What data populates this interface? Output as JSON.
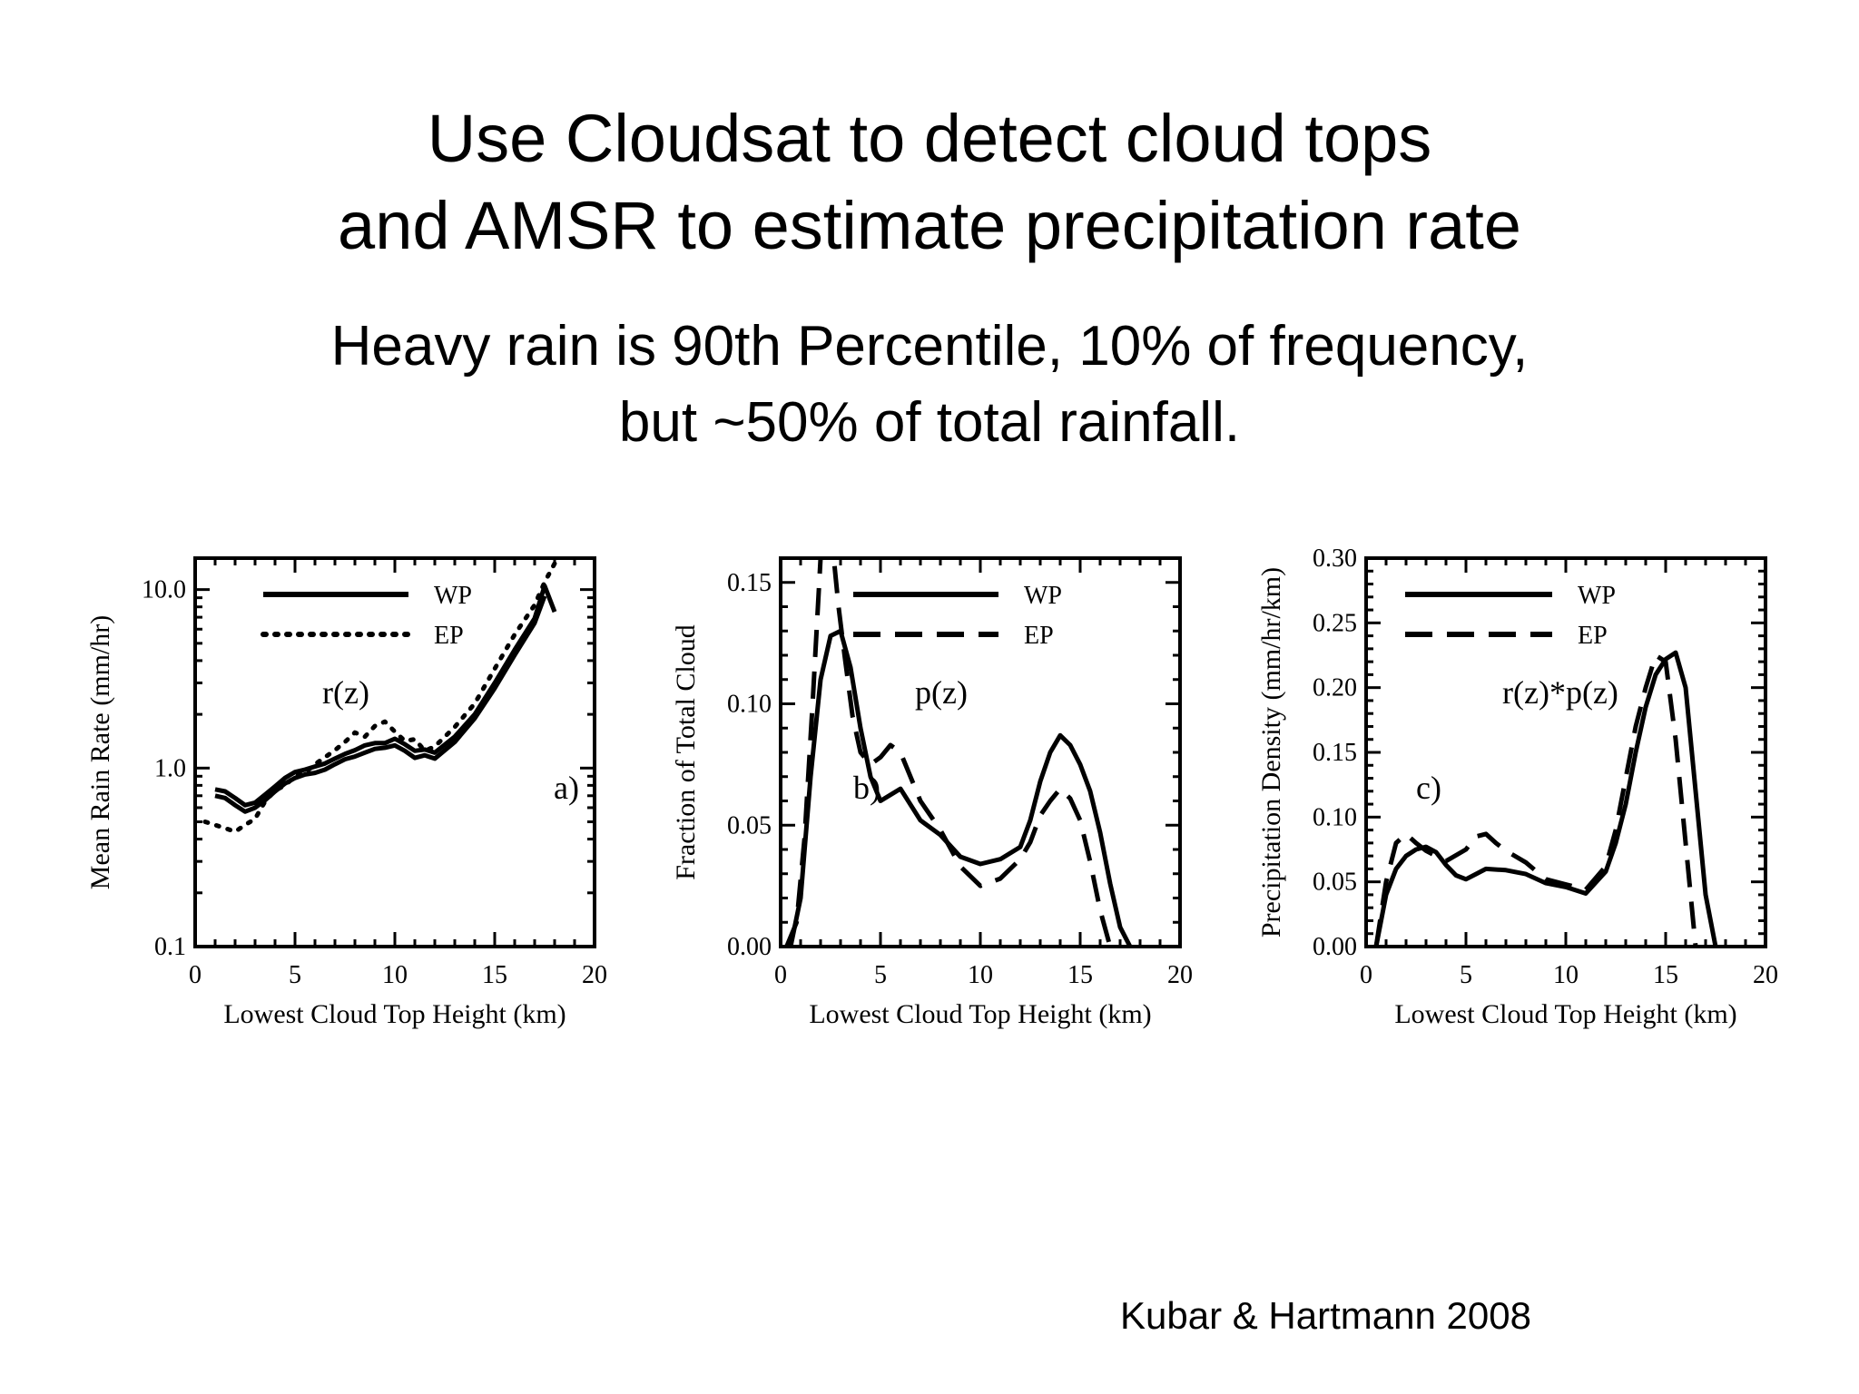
{
  "slide": {
    "title_line1": "Use Cloudsat to detect cloud tops",
    "title_line2": "and AMSR to estimate precipitation rate",
    "subtitle_line1": "Heavy rain is 90th Percentile, 10% of frequency,",
    "subtitle_line2": "but ~50% of total rainfall.",
    "citation": "Kubar & Hartmann 2008"
  },
  "chart_data": [
    {
      "type": "line",
      "panel": "a)",
      "annotation": "r(z)",
      "xlabel": "Lowest Cloud Top Height (km)",
      "ylabel": "Mean Rain Rate (mm/hr)",
      "xlim": [
        0,
        20
      ],
      "ylim": [
        0.1,
        15
      ],
      "yscale": "log",
      "xticks": [
        0,
        5,
        10,
        15,
        20
      ],
      "yticks": [
        0.1,
        1.0,
        10.0
      ],
      "yticklabels": [
        "0.1",
        "1.0",
        "10.0"
      ],
      "legend_placement": "top-right",
      "series": [
        {
          "name": "WP",
          "style": "solid",
          "x": [
            1,
            1.5,
            2,
            2.5,
            3,
            3.5,
            4,
            4.5,
            5,
            5.5,
            6,
            6.5,
            7,
            7.5,
            8,
            8.5,
            9,
            9.5,
            10,
            10.5,
            11,
            11.5,
            12,
            13,
            14,
            15,
            16,
            17,
            17.5
          ],
          "y": [
            0.7,
            0.68,
            0.62,
            0.57,
            0.6,
            0.66,
            0.74,
            0.82,
            0.88,
            0.92,
            0.94,
            0.98,
            1.05,
            1.12,
            1.16,
            1.22,
            1.28,
            1.3,
            1.34,
            1.25,
            1.14,
            1.18,
            1.13,
            1.4,
            1.9,
            2.8,
            4.3,
            6.5,
            9.2
          ]
        },
        {
          "name": "",
          "style": "solid",
          "x": [
            1,
            1.5,
            2,
            2.5,
            3,
            3.5,
            4,
            4.5,
            5,
            5.5,
            6,
            6.5,
            7,
            7.5,
            8,
            8.5,
            9,
            9.5,
            10,
            10.5,
            11,
            11.5,
            12,
            13,
            14,
            15,
            16,
            17,
            17.5,
            18
          ],
          "y": [
            0.76,
            0.74,
            0.68,
            0.62,
            0.64,
            0.71,
            0.79,
            0.88,
            0.95,
            0.98,
            1.02,
            1.06,
            1.13,
            1.2,
            1.26,
            1.34,
            1.38,
            1.38,
            1.46,
            1.36,
            1.25,
            1.27,
            1.22,
            1.5,
            2.0,
            3.0,
            4.6,
            6.9,
            10.5,
            7.5
          ]
        },
        {
          "name": "EP",
          "style": "dotted",
          "x": [
            0.5,
            1,
            1.5,
            2,
            2.5,
            3,
            3.5,
            4,
            4.5,
            5,
            5.5,
            6,
            6.5,
            7,
            7.5,
            8,
            8.5,
            9,
            9.5,
            10,
            10.5,
            11,
            11.5,
            12,
            13,
            14,
            15,
            16,
            17,
            17.5,
            18
          ],
          "y": [
            0.5,
            0.48,
            0.46,
            0.44,
            0.48,
            0.52,
            0.65,
            0.75,
            0.8,
            0.9,
            0.94,
            1.05,
            1.15,
            1.26,
            1.4,
            1.58,
            1.5,
            1.72,
            1.82,
            1.6,
            1.42,
            1.45,
            1.25,
            1.32,
            1.7,
            2.3,
            3.6,
            5.6,
            8.2,
            11,
            14
          ]
        }
      ]
    },
    {
      "type": "line",
      "panel": "b)",
      "annotation": "p(z)",
      "xlabel": "Lowest Cloud Top Height (km)",
      "ylabel": "Fraction of Total Cloud",
      "xlim": [
        0,
        20
      ],
      "ylim": [
        0,
        0.16
      ],
      "xticks": [
        0,
        5,
        10,
        15,
        20
      ],
      "yticks": [
        0.0,
        0.05,
        0.1,
        0.15
      ],
      "yticklabels": [
        "0.00",
        "0.05",
        "0.10",
        "0.15"
      ],
      "legend_placement": "top-right",
      "series": [
        {
          "name": "WP",
          "style": "solid",
          "x": [
            0.5,
            1,
            1.5,
            2,
            2.5,
            3,
            3.5,
            4,
            4.5,
            5,
            6,
            7,
            8,
            9,
            10,
            11,
            12,
            12.5,
            13,
            13.5,
            14,
            14.5,
            15,
            15.5,
            16,
            16.5,
            17,
            17.5
          ],
          "y": [
            0.0,
            0.02,
            0.07,
            0.11,
            0.128,
            0.13,
            0.115,
            0.09,
            0.07,
            0.06,
            0.065,
            0.052,
            0.046,
            0.037,
            0.034,
            0.036,
            0.041,
            0.052,
            0.068,
            0.08,
            0.087,
            0.083,
            0.075,
            0.064,
            0.047,
            0.026,
            0.008,
            0.0
          ]
        },
        {
          "name": "EP",
          "style": "dashed",
          "x": [
            0.3,
            0.8,
            1.2,
            1.6,
            2,
            2.3,
            2.6,
            2.9,
            3.2,
            3.6,
            4,
            4.5,
            5,
            5.5,
            6,
            7,
            8,
            9,
            10,
            11,
            12,
            12.5,
            13,
            13.5,
            14,
            14.5,
            15,
            15.5,
            16,
            16.5
          ],
          "y": [
            0.0,
            0.01,
            0.045,
            0.1,
            0.16,
            0.172,
            0.165,
            0.14,
            0.12,
            0.095,
            0.08,
            0.075,
            0.078,
            0.083,
            0.08,
            0.06,
            0.048,
            0.033,
            0.025,
            0.028,
            0.036,
            0.043,
            0.054,
            0.06,
            0.065,
            0.061,
            0.052,
            0.035,
            0.015,
            0.0
          ]
        }
      ]
    },
    {
      "type": "line",
      "panel": "c)",
      "annotation": "r(z)*p(z)",
      "xlabel": "Lowest Cloud Top Height (km)",
      "ylabel": "Precipitation Density (mm/hr/km)",
      "xlim": [
        0,
        20
      ],
      "ylim": [
        0,
        0.3
      ],
      "xticks": [
        0,
        5,
        10,
        15,
        20
      ],
      "yticks": [
        0.0,
        0.05,
        0.1,
        0.15,
        0.2,
        0.25,
        0.3
      ],
      "yticklabels": [
        "0.00",
        "0.05",
        "0.10",
        "0.15",
        "0.20",
        "0.25",
        "0.30"
      ],
      "legend_placement": "top-right",
      "series": [
        {
          "name": "WP",
          "style": "solid",
          "x": [
            0.5,
            1,
            1.5,
            2,
            2.5,
            3,
            3.5,
            4,
            4.5,
            5,
            5.5,
            6,
            7,
            8,
            9,
            10,
            11,
            12,
            12.5,
            13,
            13.5,
            14,
            14.5,
            15,
            15.5,
            16,
            16.5,
            17,
            17.5
          ],
          "y": [
            0.0,
            0.04,
            0.06,
            0.07,
            0.075,
            0.077,
            0.073,
            0.063,
            0.055,
            0.052,
            0.056,
            0.06,
            0.059,
            0.056,
            0.049,
            0.046,
            0.041,
            0.058,
            0.08,
            0.11,
            0.15,
            0.185,
            0.21,
            0.222,
            0.227,
            0.2,
            0.12,
            0.04,
            0.0
          ]
        },
        {
          "name": "EP",
          "style": "dashed",
          "x": [
            0.5,
            1,
            1.5,
            2,
            2.5,
            3,
            3.5,
            4,
            5,
            5.5,
            6,
            6.5,
            7,
            8,
            9,
            10,
            11,
            12,
            12.5,
            13,
            13.5,
            14,
            14.5,
            15,
            15.5,
            16,
            16.5
          ],
          "y": [
            0.0,
            0.05,
            0.08,
            0.087,
            0.08,
            0.074,
            0.07,
            0.066,
            0.075,
            0.085,
            0.087,
            0.08,
            0.074,
            0.065,
            0.052,
            0.048,
            0.044,
            0.062,
            0.09,
            0.13,
            0.17,
            0.2,
            0.225,
            0.22,
            0.16,
            0.08,
            0.0
          ]
        }
      ]
    }
  ]
}
